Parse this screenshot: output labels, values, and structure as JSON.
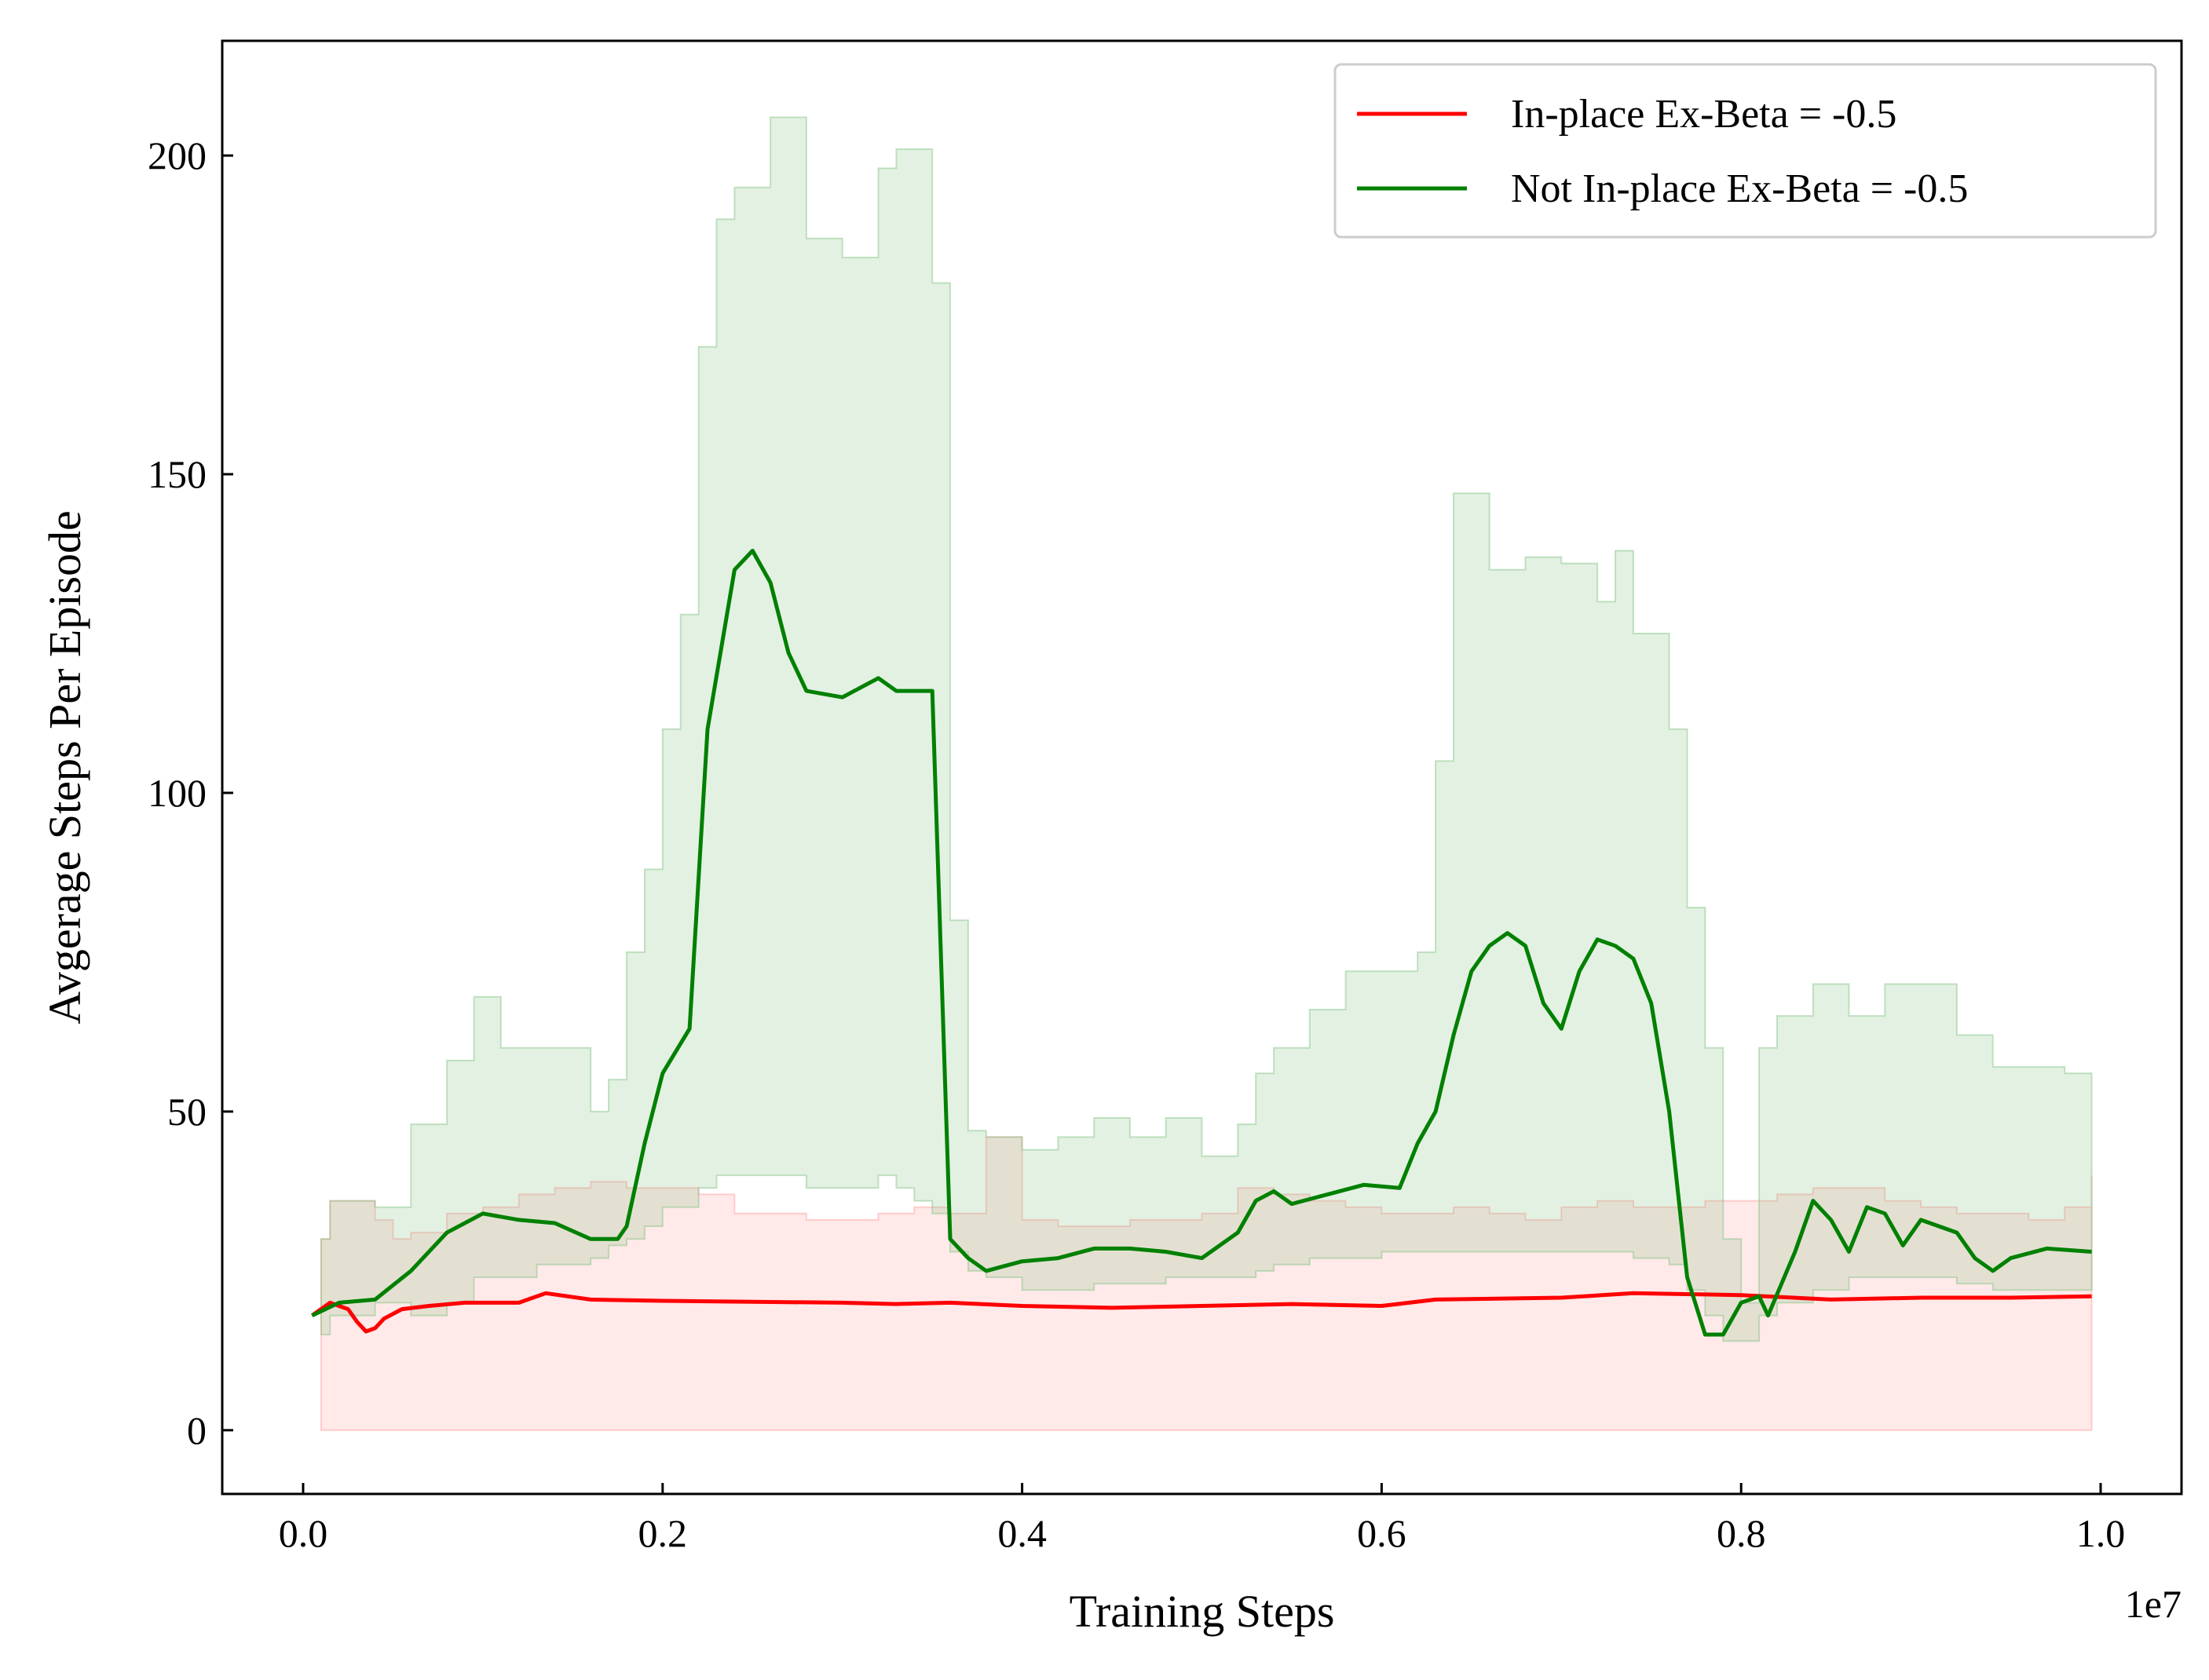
{
  "chart_data": {
    "type": "line",
    "xlabel": "Training Steps",
    "ylabel": "Avgerage Steps Per Episode",
    "x_offset_label": "1e7",
    "xlim": [
      -0.045,
      1.045
    ],
    "ylim": [
      -10,
      218
    ],
    "x_ticks": [
      0.0,
      0.2,
      0.4,
      0.6,
      0.8,
      1.0
    ],
    "x_tick_labels": [
      "0.0",
      "0.2",
      "0.4",
      "0.6",
      "0.8",
      "1.0"
    ],
    "y_ticks": [
      0,
      50,
      100,
      150,
      200
    ],
    "y_tick_labels": [
      "0",
      "50",
      "100",
      "150",
      "200"
    ],
    "legend_position": "upper right",
    "series": [
      {
        "name": "In-place Ex-Beta = -0.5",
        "color": "#ff0000",
        "x": [
          0.005,
          0.015,
          0.025,
          0.03,
          0.035,
          0.04,
          0.045,
          0.055,
          0.07,
          0.09,
          0.12,
          0.135,
          0.16,
          0.2,
          0.3,
          0.33,
          0.36,
          0.4,
          0.45,
          0.5,
          0.55,
          0.6,
          0.63,
          0.7,
          0.74,
          0.8,
          0.85,
          0.9,
          0.95,
          0.995
        ],
        "y": [
          18,
          20,
          19,
          17,
          15.5,
          16,
          17.5,
          19,
          19.5,
          20,
          20,
          21.5,
          20.5,
          20.3,
          20,
          19.8,
          20,
          19.5,
          19.2,
          19.5,
          19.8,
          19.5,
          20.5,
          20.8,
          21.5,
          21.2,
          20.5,
          20.8,
          20.8,
          21
        ]
      },
      {
        "name": "Not In-place Ex-Beta = -0.5",
        "color": "#008000",
        "x": [
          0.005,
          0.02,
          0.04,
          0.06,
          0.08,
          0.1,
          0.12,
          0.14,
          0.16,
          0.175,
          0.18,
          0.19,
          0.2,
          0.215,
          0.225,
          0.24,
          0.25,
          0.26,
          0.27,
          0.28,
          0.3,
          0.32,
          0.33,
          0.34,
          0.35,
          0.36,
          0.37,
          0.38,
          0.4,
          0.42,
          0.44,
          0.46,
          0.48,
          0.5,
          0.52,
          0.53,
          0.54,
          0.55,
          0.57,
          0.59,
          0.61,
          0.62,
          0.63,
          0.64,
          0.65,
          0.66,
          0.67,
          0.68,
          0.69,
          0.7,
          0.71,
          0.72,
          0.73,
          0.74,
          0.75,
          0.76,
          0.77,
          0.78,
          0.79,
          0.8,
          0.81,
          0.815,
          0.83,
          0.84,
          0.85,
          0.86,
          0.87,
          0.88,
          0.89,
          0.9,
          0.91,
          0.92,
          0.93,
          0.94,
          0.95,
          0.97,
          0.995
        ],
        "y": [
          18,
          20,
          20.5,
          25,
          31,
          34,
          33,
          32.5,
          30,
          30,
          32,
          45,
          56,
          63,
          110,
          135,
          138,
          133,
          122,
          116,
          115,
          118,
          116,
          116,
          116,
          30,
          27,
          25,
          26.5,
          27,
          28.5,
          28.5,
          28,
          27,
          31,
          36,
          37.5,
          35.5,
          37,
          38.5,
          38,
          45,
          50,
          62,
          72,
          76,
          78,
          76,
          67,
          63,
          72,
          77,
          76,
          74,
          67,
          50,
          24,
          15,
          15,
          20,
          21,
          18,
          28,
          36,
          33,
          28,
          35,
          34,
          29,
          33,
          32,
          31,
          27,
          25,
          27,
          28.5,
          28
        ]
      }
    ],
    "bands": [
      {
        "color": "#ff9999",
        "x": [
          0.01,
          0.015,
          0.02,
          0.04,
          0.05,
          0.06,
          0.08,
          0.1,
          0.12,
          0.14,
          0.16,
          0.18,
          0.2,
          0.22,
          0.24,
          0.26,
          0.28,
          0.3,
          0.32,
          0.34,
          0.36,
          0.38,
          0.4,
          0.42,
          0.44,
          0.46,
          0.48,
          0.5,
          0.52,
          0.54,
          0.56,
          0.58,
          0.6,
          0.62,
          0.64,
          0.66,
          0.68,
          0.7,
          0.72,
          0.74,
          0.76,
          0.78,
          0.8,
          0.82,
          0.84,
          0.86,
          0.88,
          0.9,
          0.92,
          0.94,
          0.96,
          0.98,
          0.995
        ],
        "upper": [
          30,
          36,
          36,
          33,
          30,
          31,
          34,
          35,
          37,
          38,
          39,
          38,
          38,
          37,
          34,
          34,
          33,
          33,
          34,
          35,
          34,
          46,
          33,
          32,
          32,
          33,
          33,
          34,
          38,
          37,
          36,
          35,
          34,
          34,
          35,
          34,
          33,
          35,
          36,
          35,
          35,
          36,
          36,
          37,
          38,
          38,
          36,
          35,
          34,
          34,
          33,
          35,
          40
        ],
        "lower": [
          0,
          0,
          0,
          0,
          0,
          0,
          0,
          0,
          0,
          0,
          0,
          0,
          0,
          0,
          0,
          0,
          0,
          0,
          0,
          0,
          0,
          0,
          0,
          0,
          0,
          0,
          0,
          0,
          0,
          0,
          0,
          0,
          0,
          0,
          0,
          0,
          0,
          0,
          0,
          0,
          0,
          0,
          0,
          0,
          0,
          0,
          0,
          0,
          0,
          0,
          0,
          0,
          0
        ]
      },
      {
        "color": "#80c080",
        "x": [
          0.01,
          0.015,
          0.04,
          0.06,
          0.08,
          0.095,
          0.11,
          0.13,
          0.16,
          0.17,
          0.18,
          0.19,
          0.2,
          0.21,
          0.22,
          0.23,
          0.24,
          0.26,
          0.28,
          0.3,
          0.32,
          0.33,
          0.34,
          0.35,
          0.36,
          0.37,
          0.38,
          0.4,
          0.42,
          0.44,
          0.46,
          0.48,
          0.5,
          0.52,
          0.53,
          0.54,
          0.56,
          0.58,
          0.6,
          0.62,
          0.63,
          0.64,
          0.66,
          0.68,
          0.7,
          0.72,
          0.73,
          0.74,
          0.76,
          0.77,
          0.78,
          0.79,
          0.8,
          0.81,
          0.82,
          0.84,
          0.86,
          0.88,
          0.9,
          0.92,
          0.94,
          0.96,
          0.98,
          0.995
        ],
        "upper": [
          30,
          36,
          35,
          48,
          58,
          68,
          60,
          60,
          50,
          55,
          75,
          88,
          110,
          128,
          170,
          190,
          195,
          206,
          187,
          184,
          198,
          201,
          201,
          180,
          80,
          47,
          46,
          44,
          46,
          49,
          46,
          49,
          43,
          48,
          56,
          60,
          66,
          72,
          72,
          75,
          105,
          147,
          135,
          137,
          136,
          130,
          138,
          125,
          110,
          82,
          60,
          30,
          20,
          60,
          65,
          70,
          65,
          70,
          70,
          62,
          57,
          57,
          56,
          50
        ],
        "lower": [
          15,
          18,
          20,
          18,
          20,
          24,
          24,
          26,
          27,
          29,
          30,
          32,
          35,
          35,
          38,
          40,
          40,
          40,
          38,
          38,
          40,
          38,
          36,
          34,
          28,
          25,
          24,
          22,
          22,
          23,
          23,
          24,
          24,
          24,
          25,
          26,
          27,
          27,
          28,
          28,
          28,
          28,
          28,
          28,
          28,
          28,
          28,
          27,
          26,
          22,
          18,
          14,
          14,
          18,
          20,
          22,
          24,
          24,
          24,
          23,
          22,
          22,
          22,
          22
        ]
      }
    ]
  }
}
